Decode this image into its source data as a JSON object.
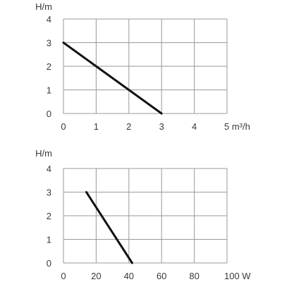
{
  "chart_data": [
    {
      "type": "line",
      "ylabel": "H/m",
      "xlabel": "m³/h",
      "xlim": [
        0,
        5
      ],
      "ylim": [
        0,
        4
      ],
      "x_ticks": [
        0,
        1,
        2,
        3,
        4,
        5
      ],
      "y_ticks": [
        0,
        1,
        2,
        3,
        4
      ],
      "x_tick_labels": [
        "0",
        "1",
        "2",
        "3",
        "4",
        "5 m³/h"
      ],
      "y_tick_labels": [
        "0",
        "1",
        "2",
        "3",
        "4"
      ],
      "grid": true,
      "series": [
        {
          "x": [
            0,
            3
          ],
          "y": [
            3,
            0
          ]
        }
      ]
    },
    {
      "type": "line",
      "ylabel": "H/m",
      "xlabel": "W",
      "xlim": [
        0,
        100
      ],
      "ylim": [
        0,
        4
      ],
      "x_ticks": [
        0,
        20,
        40,
        60,
        80,
        100
      ],
      "y_ticks": [
        0,
        1,
        2,
        3,
        4
      ],
      "x_tick_labels": [
        "0",
        "20",
        "40",
        "60",
        "80",
        "100 W"
      ],
      "y_tick_labels": [
        "0",
        "1",
        "2",
        "3",
        "4"
      ],
      "grid": true,
      "series": [
        {
          "x": [
            14,
            42
          ],
          "y": [
            3,
            0
          ]
        }
      ]
    }
  ],
  "colors": {
    "grid": "#9a9a9a",
    "line": "#111111",
    "text": "#3a3a3a"
  }
}
